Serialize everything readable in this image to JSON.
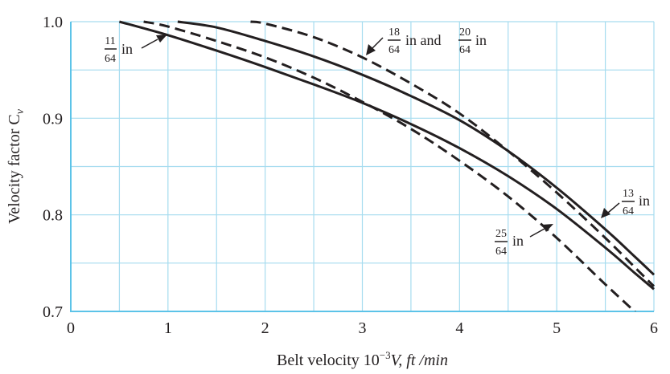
{
  "chart_data": {
    "type": "line",
    "xlabel_pre": "Belt velocity 10",
    "xlabel_sup": "−3",
    "xlabel_post": "V, ft /min",
    "ylabel": "Velocity factor C",
    "ylabel_sub": "v",
    "xlim": [
      0,
      6
    ],
    "ylim": [
      0.7,
      1.0
    ],
    "x_ticks": [
      "0",
      "1",
      "2",
      "3",
      "4",
      "5",
      "6"
    ],
    "y_ticks": [
      "0.7",
      "0.8",
      "0.9",
      "1.0"
    ],
    "grid": true,
    "series": [
      {
        "key": "s11",
        "style": "solid",
        "x": [
          0.5,
          1.0,
          1.5,
          2.0,
          2.5,
          3.0,
          3.5,
          4.0,
          4.5,
          5.0,
          5.5,
          5.8,
          6.0
        ],
        "y": [
          1.0,
          0.986,
          0.97,
          0.953,
          0.935,
          0.916,
          0.894,
          0.869,
          0.84,
          0.806,
          0.766,
          0.74,
          0.723
        ]
      },
      {
        "key": "s13",
        "style": "solid",
        "x": [
          1.1,
          1.5,
          2.0,
          2.5,
          3.0,
          3.5,
          4.0,
          4.5,
          5.0,
          5.5,
          5.8,
          6.0
        ],
        "y": [
          1.0,
          0.994,
          0.98,
          0.964,
          0.945,
          0.923,
          0.898,
          0.866,
          0.828,
          0.785,
          0.757,
          0.738
        ]
      },
      {
        "key": "s18",
        "style": "dashed",
        "x": [
          1.85,
          2.0,
          2.5,
          3.0,
          3.5,
          4.0,
          4.5,
          5.0,
          5.5,
          5.8,
          6.0
        ],
        "y": [
          1.0,
          0.998,
          0.984,
          0.963,
          0.936,
          0.905,
          0.866,
          0.823,
          0.776,
          0.746,
          0.726
        ]
      },
      {
        "key": "s25",
        "style": "dashed",
        "x": [
          0.75,
          1.0,
          1.5,
          2.0,
          2.5,
          3.0,
          3.5,
          4.0,
          4.5,
          5.0,
          5.5,
          5.8,
          5.95
        ],
        "y": [
          1.0,
          0.995,
          0.98,
          0.963,
          0.942,
          0.917,
          0.889,
          0.856,
          0.819,
          0.776,
          0.728,
          0.7,
          0.685
        ]
      }
    ],
    "annotations": [
      {
        "key": "a11",
        "num": "11",
        "den": "64",
        "unit": "in",
        "tip": [
          1.0,
          0.986
        ]
      },
      {
        "key": "a18",
        "num": "18",
        "den": "64",
        "mid": "in and",
        "num2": "20",
        "den2": "64",
        "unit": "in",
        "tip": [
          3.0,
          0.963
        ]
      },
      {
        "key": "a13",
        "num": "13",
        "den": "64",
        "unit": "in",
        "tip": [
          5.47,
          0.795
        ]
      },
      {
        "key": "a25",
        "num": "25",
        "den": "64",
        "unit": "in",
        "tip": [
          4.95,
          0.79
        ]
      }
    ]
  }
}
